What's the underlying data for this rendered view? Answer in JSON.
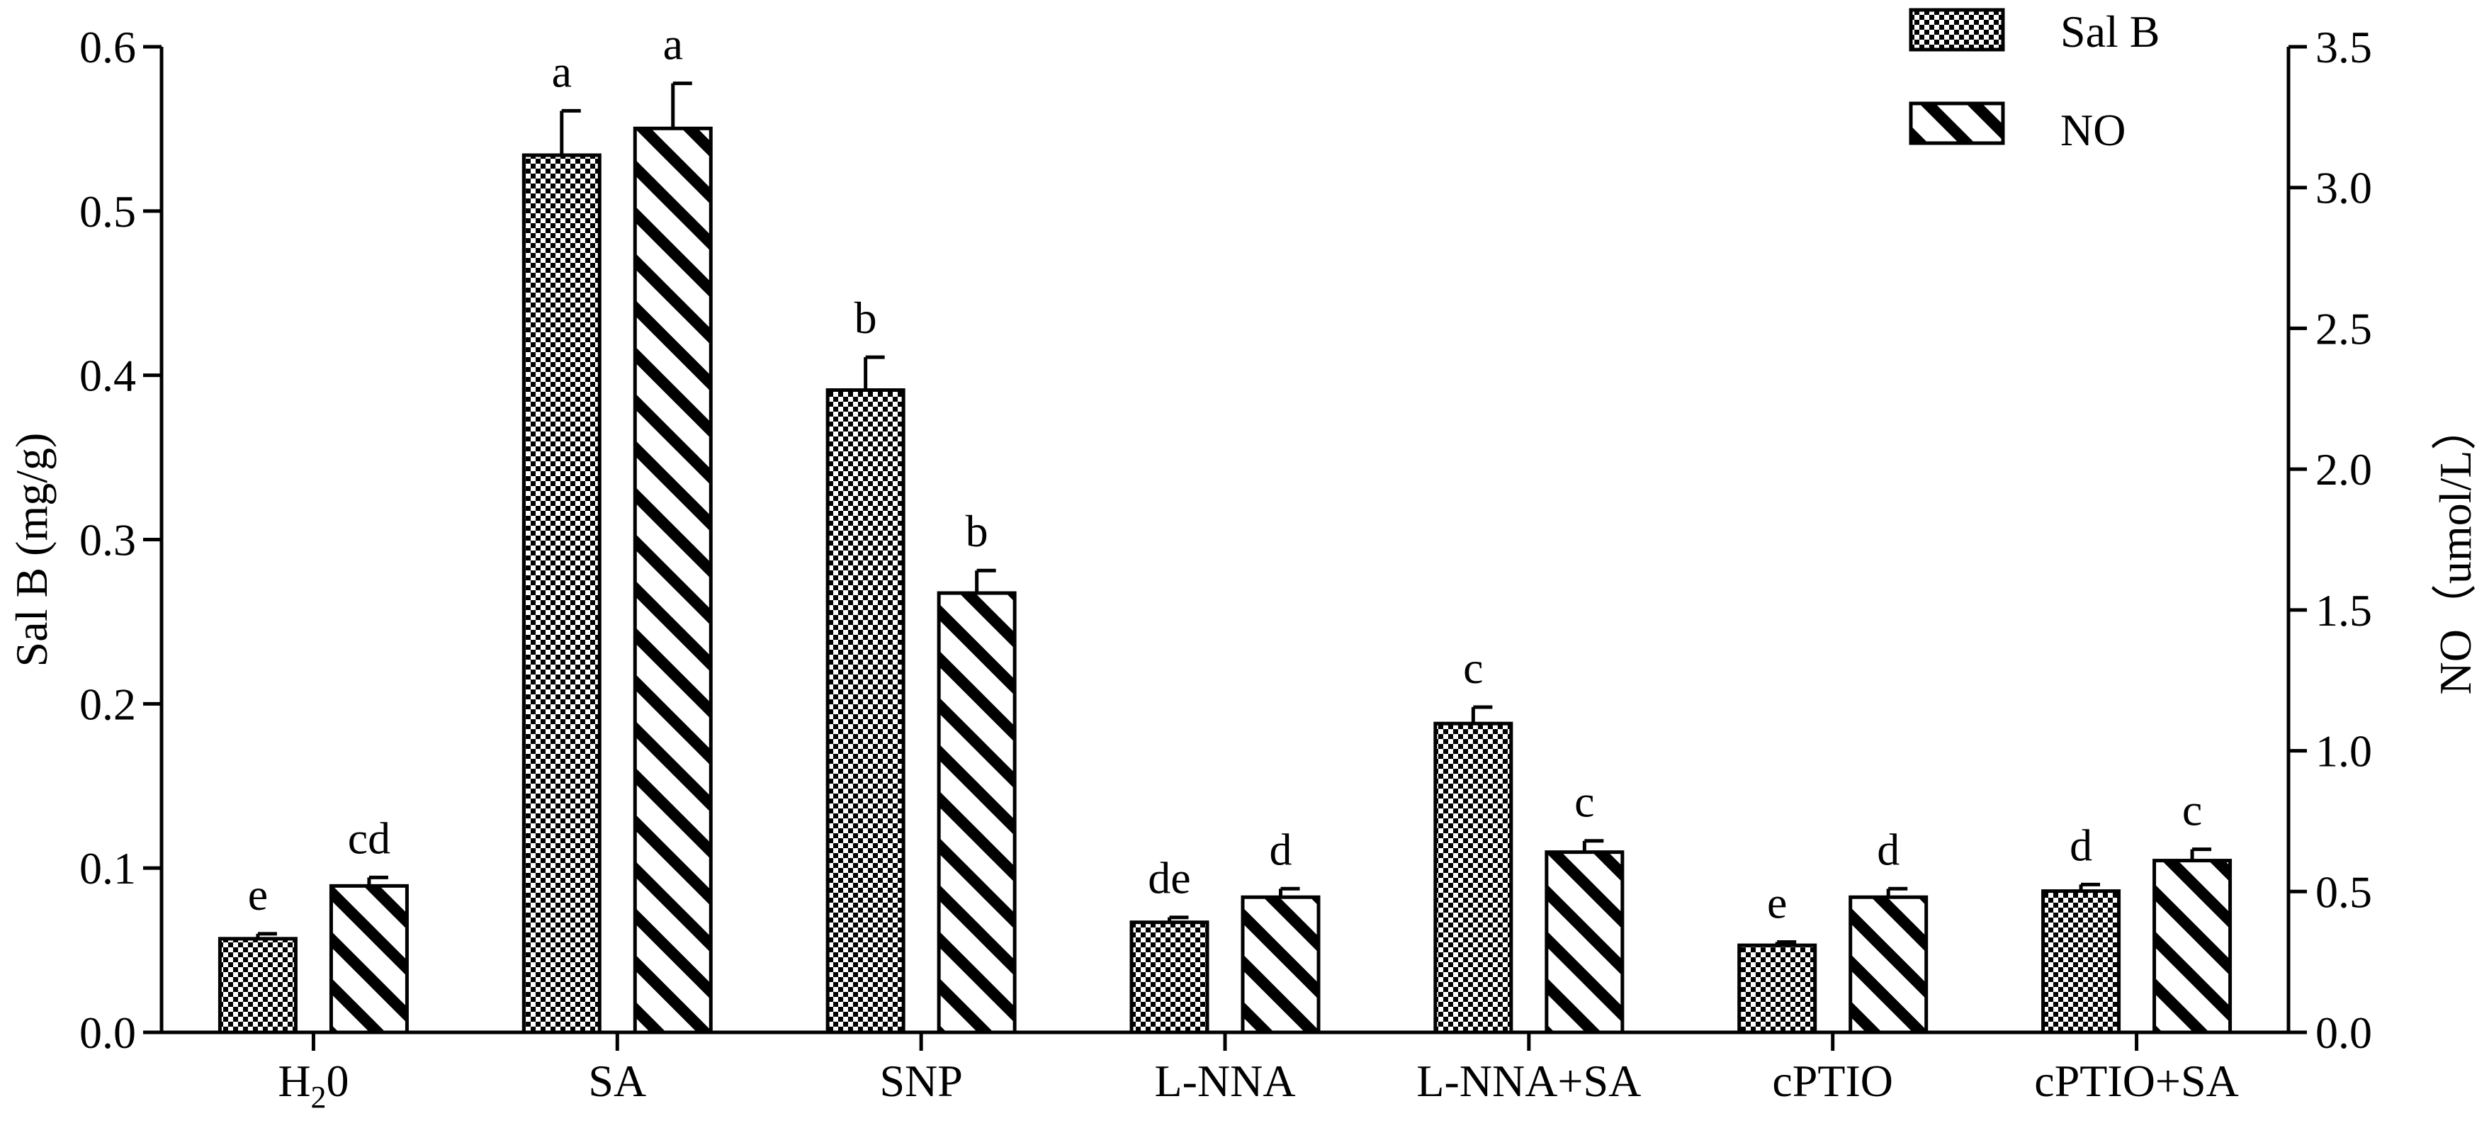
{
  "chart_data": {
    "type": "bar",
    "categories": [
      "H20",
      "SA",
      "SNP",
      "L-NNA",
      "L-NNA+SA",
      "cPTIO",
      "cPTIO+SA"
    ],
    "category_labels": [
      {
        "main": "H",
        "sub": "2",
        "tail": "0"
      },
      {
        "main": "SA"
      },
      {
        "main": "SNP"
      },
      {
        "main": "L-NNA"
      },
      {
        "main": "L-NNA+SA"
      },
      {
        "main": "cPTIO"
      },
      {
        "main": "cPTIO+SA"
      }
    ],
    "series": [
      {
        "name": "Sal B",
        "axis": "left",
        "pattern": "checkerboard",
        "values": [
          0.057,
          0.534,
          0.391,
          0.067,
          0.188,
          0.053,
          0.086
        ],
        "errors": [
          0.003,
          0.027,
          0.02,
          0.003,
          0.01,
          0.002,
          0.004
        ],
        "letters": [
          "e",
          "a",
          "b",
          "de",
          "c",
          "e",
          "d"
        ]
      },
      {
        "name": "NO",
        "axis": "right",
        "pattern": "diagonal-stripes",
        "values": [
          0.52,
          3.21,
          1.56,
          0.48,
          0.64,
          0.48,
          0.61
        ],
        "errors": [
          0.03,
          0.16,
          0.08,
          0.03,
          0.04,
          0.03,
          0.04
        ],
        "letters": [
          "cd",
          "a",
          "b",
          "d",
          "c",
          "d",
          "c"
        ]
      }
    ],
    "left_axis": {
      "label": "Sal B (mg/g)",
      "range": [
        0,
        0.6
      ],
      "ticks": [
        "0.0",
        "0.1",
        "0.2",
        "0.3",
        "0.4",
        "0.5",
        "0.6"
      ]
    },
    "right_axis": {
      "label": "NO（umol/L）",
      "range": [
        0,
        3.5
      ],
      "ticks": [
        "0.0",
        "0.5",
        "1.0",
        "1.5",
        "2.0",
        "2.5",
        "3.0",
        "3.5"
      ]
    },
    "legend": {
      "position": "top-right",
      "entries": [
        "Sal B",
        "NO"
      ]
    },
    "grid": false
  }
}
